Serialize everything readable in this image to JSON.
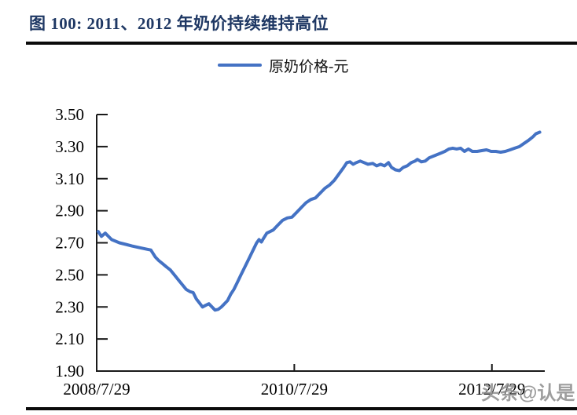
{
  "header": {
    "title": "图 100: 2011、2012 年奶价持续维持高位"
  },
  "legend": {
    "label": "原奶价格-元"
  },
  "watermark": {
    "text": "头条@认是"
  },
  "colors": {
    "line": "#4472C4",
    "title": "#1F3864",
    "rule": "#0B0B0B",
    "axis": "#1A1A1A",
    "tick_label": "#000000",
    "watermark": "#8C8C8C",
    "background": "#FFFFFF"
  },
  "chart_data": {
    "type": "line",
    "title": "图 100: 2011、2012 年奶价持续维持高位",
    "ylabel": "原奶价格 (元)",
    "xlabel": "",
    "grid": false,
    "legend_position": "top-center",
    "x_axis": {
      "min": 2008.575,
      "max": 2013.11,
      "ticks": [
        {
          "t": 2008.575,
          "label": "2008/7/29"
        },
        {
          "t": 2010.575,
          "label": "2010/7/29"
        },
        {
          "t": 2012.575,
          "label": "2012/7/29"
        }
      ]
    },
    "y_axis": {
      "min": 1.9,
      "max": 3.5,
      "ticks": [
        {
          "v": 3.5,
          "label": "3.50"
        },
        {
          "v": 3.3,
          "label": "3.30"
        },
        {
          "v": 3.1,
          "label": "3.10"
        },
        {
          "v": 2.9,
          "label": "2.90"
        },
        {
          "v": 2.7,
          "label": "2.70"
        },
        {
          "v": 2.5,
          "label": "2.50"
        },
        {
          "v": 2.3,
          "label": "2.30"
        },
        {
          "v": 2.1,
          "label": "2.10"
        },
        {
          "v": 1.9,
          "label": "1.90"
        }
      ]
    },
    "series": [
      {
        "name": "原奶价格-元",
        "unit": "元",
        "points": [
          [
            2008.591,
            2.77
          ],
          [
            2008.623,
            2.74
          ],
          [
            2008.662,
            2.76
          ],
          [
            2008.726,
            2.72
          ],
          [
            2008.805,
            2.7
          ],
          [
            2008.869,
            2.69
          ],
          [
            2008.932,
            2.68
          ],
          [
            2009.004,
            2.67
          ],
          [
            2009.083,
            2.66
          ],
          [
            2009.123,
            2.655
          ],
          [
            2009.17,
            2.61
          ],
          [
            2009.202,
            2.59
          ],
          [
            2009.242,
            2.57
          ],
          [
            2009.281,
            2.55
          ],
          [
            2009.321,
            2.53
          ],
          [
            2009.361,
            2.5
          ],
          [
            2009.4,
            2.47
          ],
          [
            2009.44,
            2.44
          ],
          [
            2009.48,
            2.41
          ],
          [
            2009.52,
            2.395
          ],
          [
            2009.551,
            2.39
          ],
          [
            2009.583,
            2.35
          ],
          [
            2009.615,
            2.325
          ],
          [
            2009.646,
            2.3
          ],
          [
            2009.678,
            2.31
          ],
          [
            2009.71,
            2.32
          ],
          [
            2009.742,
            2.3
          ],
          [
            2009.773,
            2.28
          ],
          [
            2009.805,
            2.285
          ],
          [
            2009.837,
            2.3
          ],
          [
            2009.869,
            2.32
          ],
          [
            2009.9,
            2.34
          ],
          [
            2009.932,
            2.38
          ],
          [
            2009.964,
            2.41
          ],
          [
            2009.996,
            2.45
          ],
          [
            2010.035,
            2.5
          ],
          [
            2010.075,
            2.55
          ],
          [
            2010.115,
            2.6
          ],
          [
            2010.154,
            2.65
          ],
          [
            2010.194,
            2.7
          ],
          [
            2010.218,
            2.72
          ],
          [
            2010.242,
            2.705
          ],
          [
            2010.266,
            2.73
          ],
          [
            2010.297,
            2.76
          ],
          [
            2010.329,
            2.77
          ],
          [
            2010.361,
            2.78
          ],
          [
            2010.408,
            2.81
          ],
          [
            2010.456,
            2.84
          ],
          [
            2010.504,
            2.855
          ],
          [
            2010.551,
            2.86
          ],
          [
            2010.599,
            2.89
          ],
          [
            2010.646,
            2.92
          ],
          [
            2010.694,
            2.95
          ],
          [
            2010.742,
            2.97
          ],
          [
            2010.789,
            2.98
          ],
          [
            2010.837,
            3.01
          ],
          [
            2010.885,
            3.04
          ],
          [
            2010.932,
            3.06
          ],
          [
            2010.98,
            3.09
          ],
          [
            2011.028,
            3.13
          ],
          [
            2011.075,
            3.17
          ],
          [
            2011.107,
            3.2
          ],
          [
            2011.139,
            3.205
          ],
          [
            2011.171,
            3.19
          ],
          [
            2011.202,
            3.2
          ],
          [
            2011.242,
            3.21
          ],
          [
            2011.282,
            3.2
          ],
          [
            2011.321,
            3.19
          ],
          [
            2011.369,
            3.195
          ],
          [
            2011.409,
            3.18
          ],
          [
            2011.448,
            3.19
          ],
          [
            2011.488,
            3.18
          ],
          [
            2011.528,
            3.2
          ],
          [
            2011.559,
            3.17
          ],
          [
            2011.599,
            3.155
          ],
          [
            2011.639,
            3.15
          ],
          [
            2011.678,
            3.17
          ],
          [
            2011.718,
            3.18
          ],
          [
            2011.758,
            3.2
          ],
          [
            2011.797,
            3.21
          ],
          [
            2011.821,
            3.22
          ],
          [
            2011.861,
            3.205
          ],
          [
            2011.9,
            3.21
          ],
          [
            2011.94,
            3.23
          ],
          [
            2011.98,
            3.24
          ],
          [
            2012.02,
            3.25
          ],
          [
            2012.059,
            3.26
          ],
          [
            2012.099,
            3.27
          ],
          [
            2012.139,
            3.285
          ],
          [
            2012.178,
            3.29
          ],
          [
            2012.218,
            3.285
          ],
          [
            2012.258,
            3.29
          ],
          [
            2012.297,
            3.27
          ],
          [
            2012.337,
            3.285
          ],
          [
            2012.377,
            3.27
          ],
          [
            2012.425,
            3.27
          ],
          [
            2012.472,
            3.275
          ],
          [
            2012.52,
            3.28
          ],
          [
            2012.567,
            3.27
          ],
          [
            2012.615,
            3.27
          ],
          [
            2012.663,
            3.265
          ],
          [
            2012.71,
            3.27
          ],
          [
            2012.758,
            3.28
          ],
          [
            2012.805,
            3.29
          ],
          [
            2012.853,
            3.3
          ],
          [
            2012.9,
            3.32
          ],
          [
            2012.948,
            3.34
          ],
          [
            2012.988,
            3.36
          ],
          [
            2013.02,
            3.38
          ],
          [
            2013.059,
            3.39
          ]
        ]
      }
    ]
  }
}
